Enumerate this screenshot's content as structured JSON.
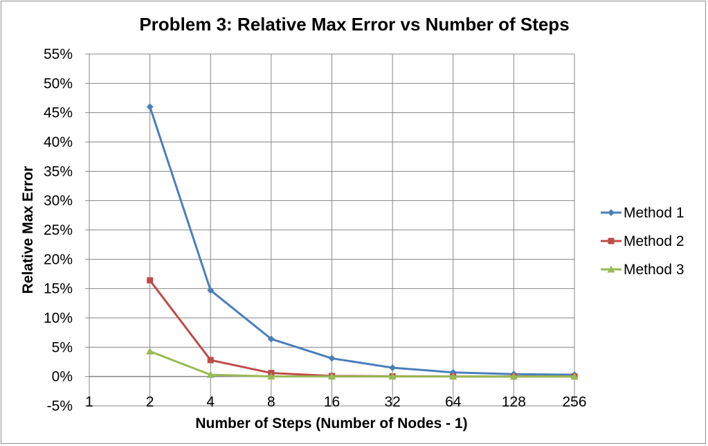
{
  "chart_data": {
    "type": "line",
    "title": "Problem 3: Relative Max Error vs Number of Steps",
    "xlabel": "Number of Steps (Number of Nodes - 1)",
    "ylabel": "Relative Max Error",
    "categories": [
      "1",
      "2",
      "4",
      "8",
      "16",
      "32",
      "64",
      "128",
      "256"
    ],
    "y_ticks": [
      "-5%",
      "0%",
      "5%",
      "10%",
      "15%",
      "20%",
      "25%",
      "30%",
      "35%",
      "40%",
      "45%",
      "50%",
      "55%"
    ],
    "ylim": [
      -0.05,
      0.55
    ],
    "y_step": 0.05,
    "grid": true,
    "legend_position": "right",
    "series": [
      {
        "name": "Method 1",
        "color": "#4a7ebb",
        "marker": "diamond",
        "values": [
          null,
          0.46,
          0.147,
          0.064,
          0.031,
          0.015,
          0.007,
          0.004,
          0.003
        ]
      },
      {
        "name": "Method 2",
        "color": "#be4b48",
        "marker": "square",
        "values": [
          null,
          0.164,
          0.028,
          0.006,
          0.001,
          0.0003,
          0.0001,
          0.0,
          0.0
        ]
      },
      {
        "name": "Method 3",
        "color": "#98b954",
        "marker": "triangle",
        "values": [
          null,
          0.043,
          0.003,
          0.0002,
          0.0,
          0.0,
          0.0,
          0.0,
          0.0
        ]
      }
    ]
  }
}
